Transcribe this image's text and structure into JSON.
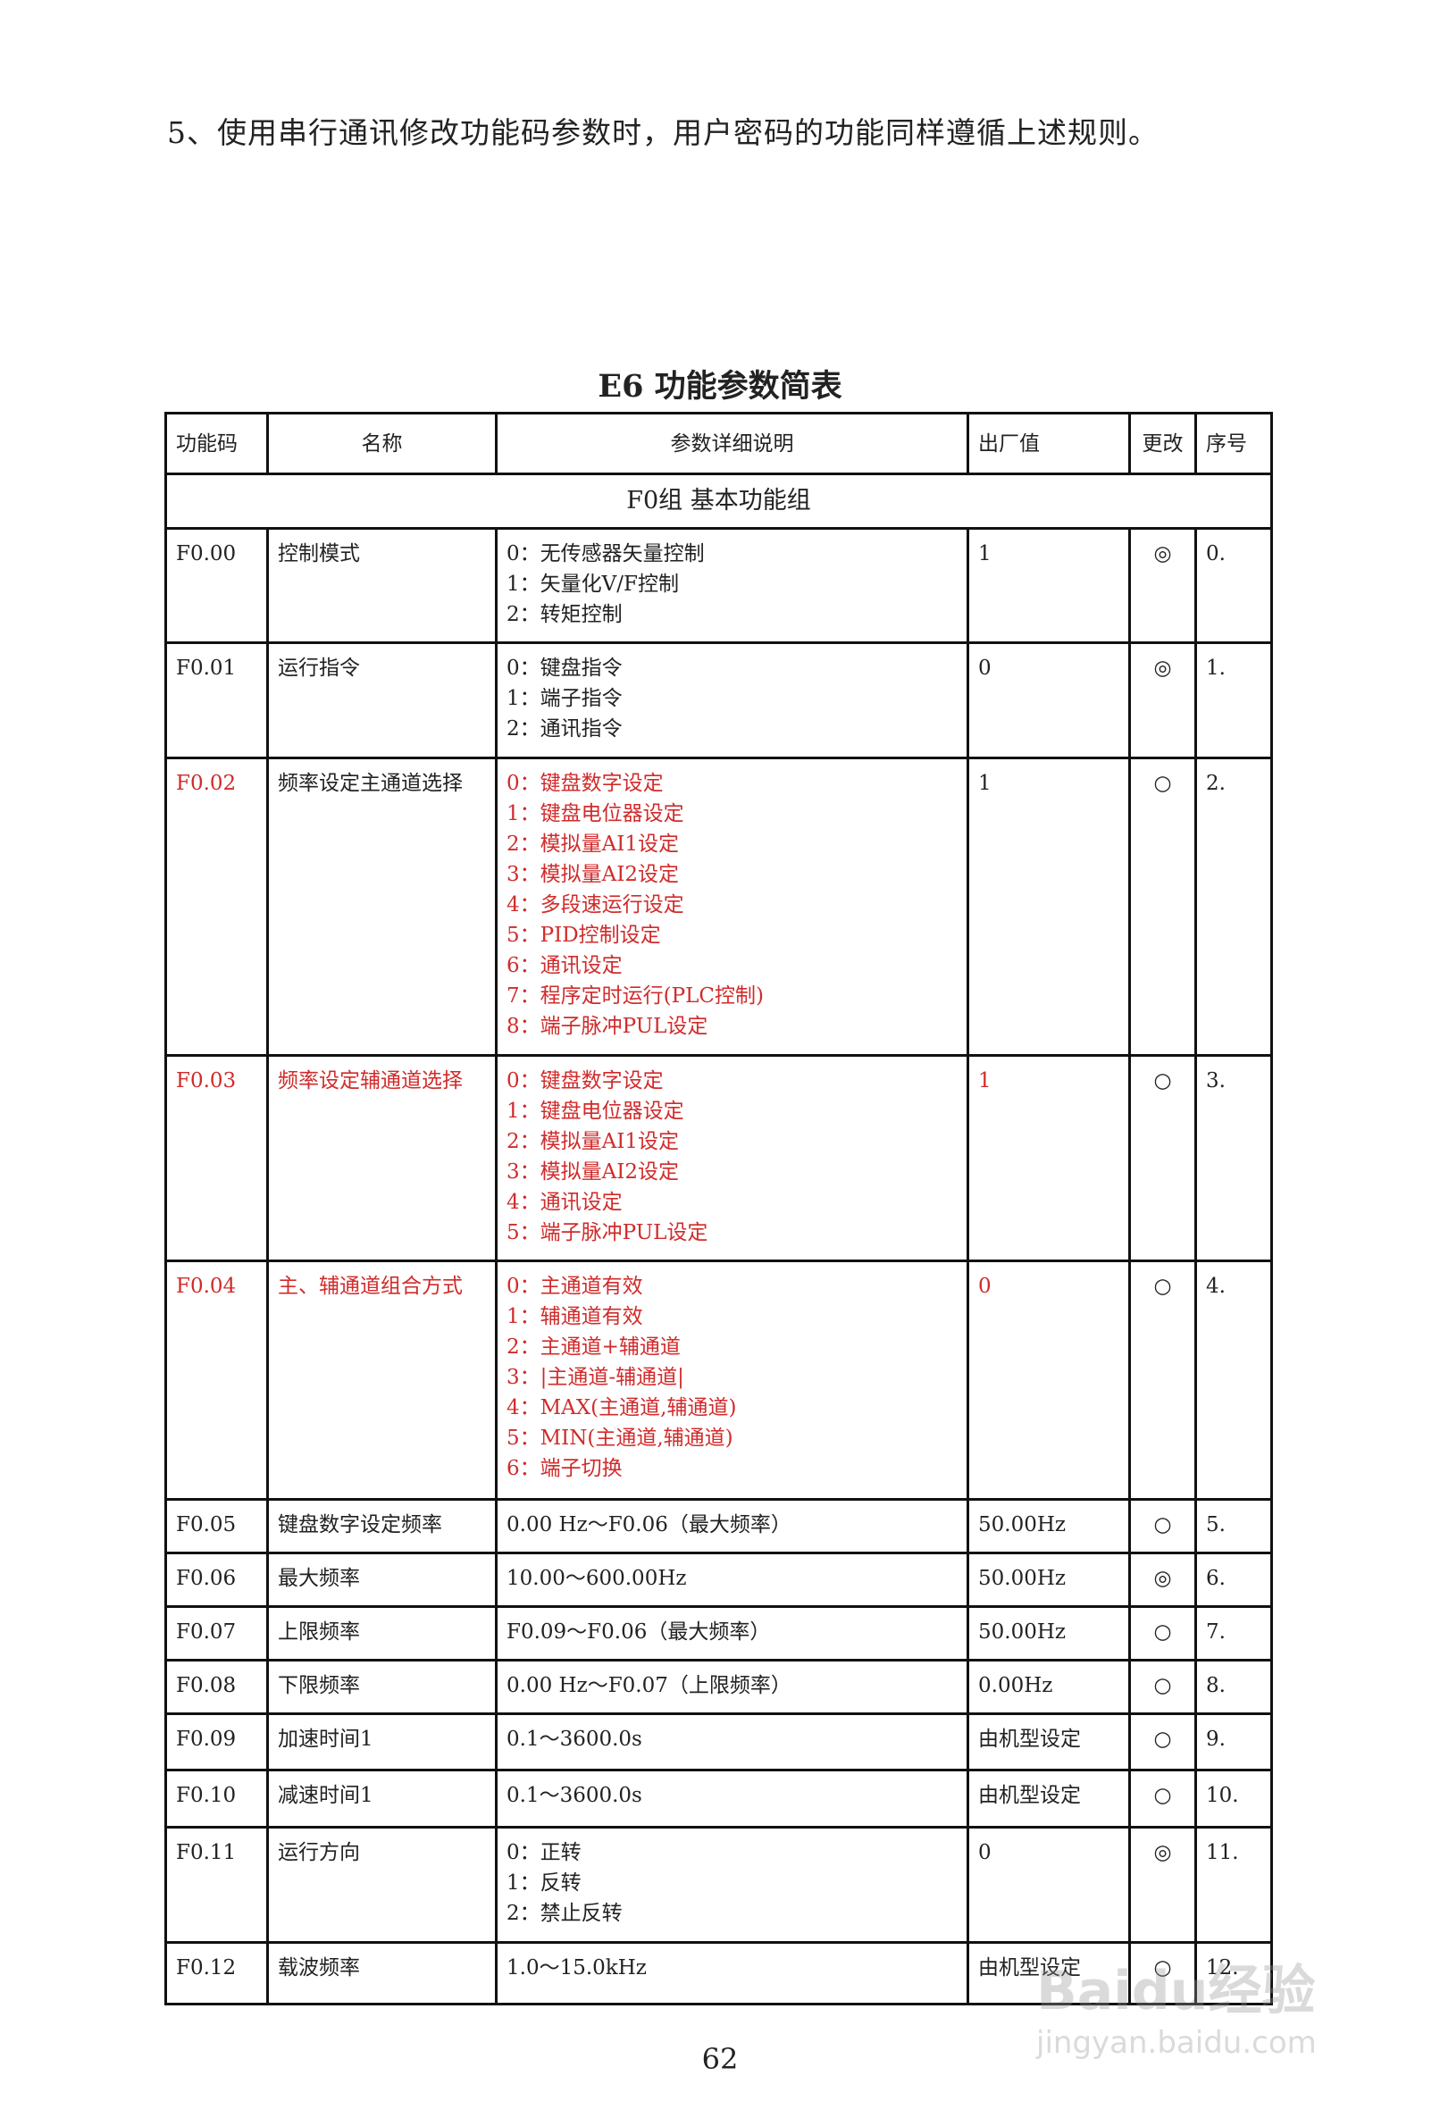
{
  "intro": "5、使用串行通讯修改功能码参数时，用户密码的功能同样遵循上述规则。",
  "table_title": "E6 功能参数简表",
  "columns": [
    "功能码",
    "名称",
    "参数详细说明",
    "出厂值",
    "更改",
    "序号"
  ],
  "group": "F0组  基本功能组",
  "colors": {
    "highlight": "#d12b2b",
    "text": "#222222"
  },
  "rows": [
    {
      "code": "F0.00",
      "name": "控制模式",
      "desc": [
        "0：无传感器矢量控制",
        "1：矢量化V/F控制",
        "2：转矩控制"
      ],
      "default": "1",
      "change": "◎",
      "seq": "0.",
      "red": []
    },
    {
      "code": "F0.01",
      "name": "运行指令",
      "desc": [
        "0：键盘指令",
        "1：端子指令",
        "2：通讯指令"
      ],
      "default": "0",
      "change": "◎",
      "seq": "1.",
      "red": []
    },
    {
      "code": "F0.02",
      "name": "频率设定主通道选择",
      "desc": [
        "0：键盘数字设定",
        "1：键盘电位器设定",
        "2：模拟量AI1设定",
        "3：模拟量AI2设定",
        "4：多段速运行设定",
        "5：PID控制设定",
        "6：通讯设定",
        "7：程序定时运行(PLC控制)",
        "8：端子脉冲PUL设定"
      ],
      "default": "1",
      "change": "○",
      "seq": "2.",
      "red": [
        "code",
        "desc"
      ]
    },
    {
      "code": "F0.03",
      "name": "频率设定辅通道选择",
      "desc": [
        "0：键盘数字设定",
        "1：键盘电位器设定",
        "2：模拟量AI1设定",
        "3：模拟量AI2设定",
        "4：通讯设定",
        "5：端子脉冲PUL设定"
      ],
      "default": "1",
      "change": "○",
      "seq": "3.",
      "red": [
        "code",
        "name",
        "desc",
        "default"
      ]
    },
    {
      "code": "F0.04",
      "name": "主、辅通道组合方式",
      "desc": [
        "0：主通道有效",
        "1：辅通道有效",
        "2：主通道+辅通道",
        "3：|主通道-辅通道|",
        "4：MAX(主通道,辅通道)",
        "5：MIN(主通道,辅通道)",
        "6：端子切换"
      ],
      "default": "0",
      "change": "○",
      "seq": "4.",
      "red": [
        "code",
        "name",
        "desc",
        "default"
      ]
    },
    {
      "code": "F0.05",
      "name": "键盘数字设定频率",
      "desc": [
        "0.00 Hz～F0.06（最大频率）"
      ],
      "default": "50.00Hz",
      "change": "○",
      "seq": "5.",
      "red": []
    },
    {
      "code": "F0.06",
      "name": "最大频率",
      "desc": [
        "10.00～600.00Hz"
      ],
      "default": "50.00Hz",
      "change": "◎",
      "seq": "6.",
      "red": []
    },
    {
      "code": "F0.07",
      "name": "上限频率",
      "desc": [
        "F0.09～F0.06（最大频率）"
      ],
      "default": "50.00Hz",
      "change": "○",
      "seq": "7.",
      "red": []
    },
    {
      "code": "F0.08",
      "name": "下限频率",
      "desc": [
        "0.00 Hz～F0.07（上限频率）"
      ],
      "default": "0.00Hz",
      "change": "○",
      "seq": "8.",
      "red": []
    },
    {
      "code": "F0.09",
      "name": "加速时间1",
      "desc": [
        "0.1～3600.0s"
      ],
      "default": "由机型设定",
      "change": "○",
      "seq": "9.",
      "red": []
    },
    {
      "code": "F0.10",
      "name": "减速时间1",
      "desc": [
        "0.1～3600.0s"
      ],
      "default": "由机型设定",
      "change": "○",
      "seq": "10.",
      "red": []
    },
    {
      "code": "F0.11",
      "name": "运行方向",
      "desc": [
        "0：正转",
        "1：反转",
        "2：禁止反转"
      ],
      "default": "0",
      "change": "◎",
      "seq": "11.",
      "red": []
    },
    {
      "code": "F0.12",
      "name": "载波频率",
      "desc": [
        "1.0～15.0kHz"
      ],
      "default": "由机型设定",
      "change": "○",
      "seq": "12.",
      "red": []
    }
  ],
  "page_number": "62",
  "watermark": {
    "brand": "Baidu经验",
    "url": "jingyan.baidu.com"
  }
}
